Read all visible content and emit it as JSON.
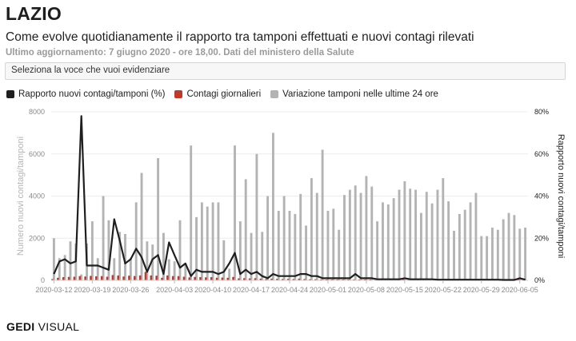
{
  "header": {
    "title": "LAZIO",
    "subtitle": "Come evolve quotidianamente il rapporto tra tamponi effettuati e nuovi contagi rilevati",
    "updated": "Ultimo aggiornamento: 7 giugno 2020 - ore 18,00. Dati del ministero della Salute"
  },
  "selector": {
    "label": "Seleziona la voce che vuoi evidenziare"
  },
  "logo": {
    "bold_part": "GEDI",
    "light_part": " VISUAL"
  },
  "colors": {
    "ratio": "#1f1f1f",
    "cases": "#c0392b",
    "tests": "#b3b3b3"
  },
  "chart_data": {
    "type": "bar",
    "start_date": "2020-03-12",
    "x_tick_labels": [
      "2020-03-12",
      "2020-03-19",
      "2020-03-26",
      "2020-04-03",
      "2020-04-10",
      "2020-04-17",
      "2020-04-24",
      "2020-05-01",
      "2020-05-08",
      "2020-05-15",
      "2020-05-22",
      "2020-05-29",
      "2020-06-05"
    ],
    "x_tick_indices": [
      0,
      7,
      14,
      22,
      29,
      36,
      43,
      50,
      57,
      64,
      71,
      78,
      85
    ],
    "ylabel_left": "Numero nuovi contagi/tamponi",
    "ylabel_right": "Rapporto nuovi contagi/tamponi",
    "ylim_left": [
      0,
      8000
    ],
    "yticks_left": [
      "0",
      "2000",
      "4000",
      "6000",
      "8000"
    ],
    "ylim_right": [
      0,
      80
    ],
    "yticks_right": [
      "0%",
      "20%",
      "40%",
      "60%",
      "80%"
    ],
    "legend_position": "top-left",
    "series": [
      {
        "name": "Rapporto nuovi contagi/tamponi (%)",
        "kind": "line",
        "axis": "right",
        "values": [
          3,
          9,
          10,
          8,
          9,
          78,
          7,
          7,
          7,
          6,
          5,
          29,
          19,
          8,
          10,
          15,
          11,
          4,
          10,
          12,
          3,
          18,
          12,
          6,
          8,
          2,
          5,
          4,
          4,
          4,
          3,
          4,
          8,
          13,
          3,
          5,
          3,
          4,
          2,
          1,
          3,
          2,
          2,
          2,
          2,
          3,
          3,
          2,
          2,
          1,
          1,
          1,
          1,
          1,
          1,
          3,
          1,
          1,
          1,
          0.5,
          0.5,
          0.5,
          0.5,
          0.5,
          1,
          0.5,
          0.5,
          0.5,
          0.5,
          0.5,
          0.3,
          0.3,
          0.3,
          0.3,
          0.3,
          0.3,
          0.3,
          0.3,
          0.3,
          0.3,
          0.3,
          0.3,
          0.2,
          0.2,
          0.2,
          1,
          0.3
        ]
      },
      {
        "name": "Contagi giornalieri",
        "kind": "bar",
        "axis": "left",
        "values": [
          60,
          120,
          150,
          160,
          170,
          200,
          180,
          210,
          190,
          200,
          170,
          250,
          230,
          180,
          220,
          200,
          230,
          400,
          230,
          220,
          120,
          230,
          200,
          200,
          170,
          140,
          160,
          150,
          140,
          150,
          120,
          130,
          120,
          160,
          90,
          100,
          90,
          100,
          80,
          60,
          80,
          70,
          60,
          70,
          60,
          80,
          60,
          50,
          50,
          40,
          35,
          40,
          30,
          30,
          30,
          30,
          20,
          20,
          20,
          20,
          20,
          15,
          15,
          15,
          15,
          15,
          15,
          10,
          10,
          10,
          10,
          10,
          8,
          8,
          8,
          8,
          8,
          8,
          5,
          5,
          5,
          5,
          5,
          5,
          5,
          5,
          5
        ]
      },
      {
        "name": "Variazione tamponi nelle ultime 24 ore",
        "kind": "bar",
        "axis": "left",
        "values": [
          2000,
          1050,
          1200,
          1850,
          1750,
          280,
          1750,
          2800,
          1050,
          4000,
          2850,
          1050,
          2300,
          2200,
          1050,
          3700,
          5100,
          1850,
          1700,
          5800,
          2250,
          1000,
          900,
          2850,
          800,
          6400,
          3000,
          3700,
          3500,
          3700,
          3700,
          1900,
          550,
          6400,
          2800,
          4800,
          2250,
          6000,
          2300,
          4000,
          7000,
          3300,
          4000,
          3300,
          3150,
          4100,
          2600,
          4850,
          4150,
          6200,
          3300,
          3400,
          2400,
          4050,
          4300,
          4500,
          4150,
          4950,
          4450,
          2800,
          3700,
          3600,
          3900,
          4300,
          4700,
          4350,
          4300,
          3200,
          4200,
          3650,
          4300,
          4850,
          3750,
          2350,
          3150,
          3350,
          3700,
          4150,
          2100,
          2100,
          2500,
          2400,
          2900,
          3200,
          3100,
          2450,
          2500
        ]
      }
    ]
  }
}
